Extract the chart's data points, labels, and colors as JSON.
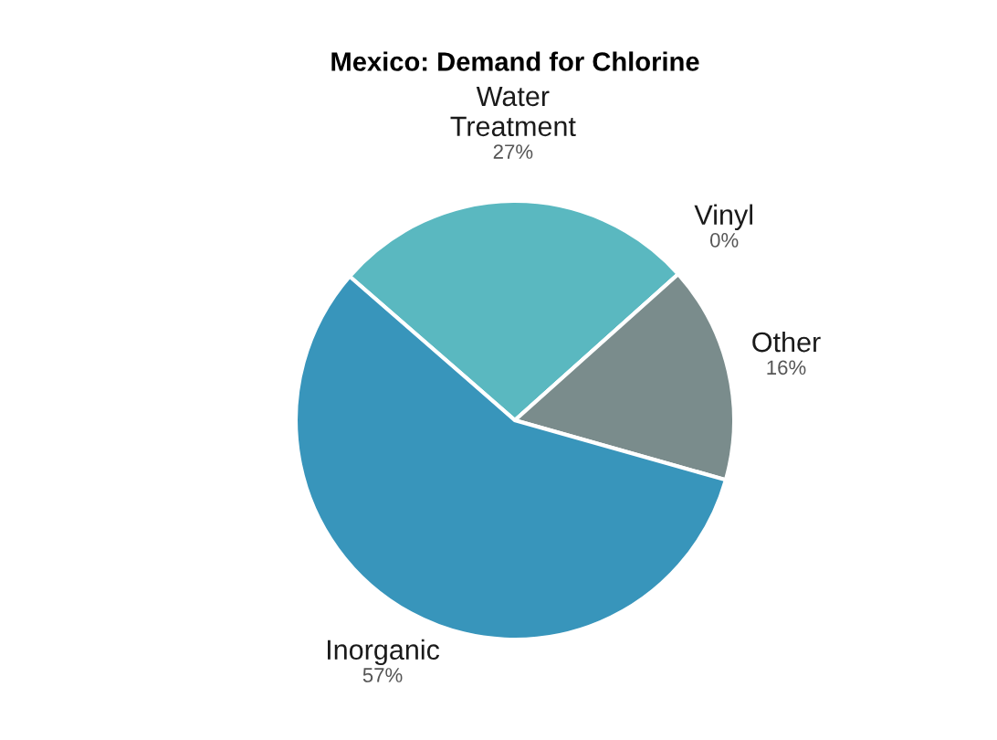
{
  "chart_data": {
    "type": "pie",
    "title": "Mexico: Demand for Chlorine",
    "categories": [
      "Water\nTreatment",
      "Vinyl",
      "Other",
      "Inorganic"
    ],
    "values": [
      27,
      0,
      16,
      57
    ],
    "value_labels": [
      "27%",
      "0%",
      "16%",
      "57%"
    ],
    "colors": [
      "#5ab8c0",
      "#7a8f8f",
      "#7a8c8c",
      "#3895bb"
    ]
  }
}
